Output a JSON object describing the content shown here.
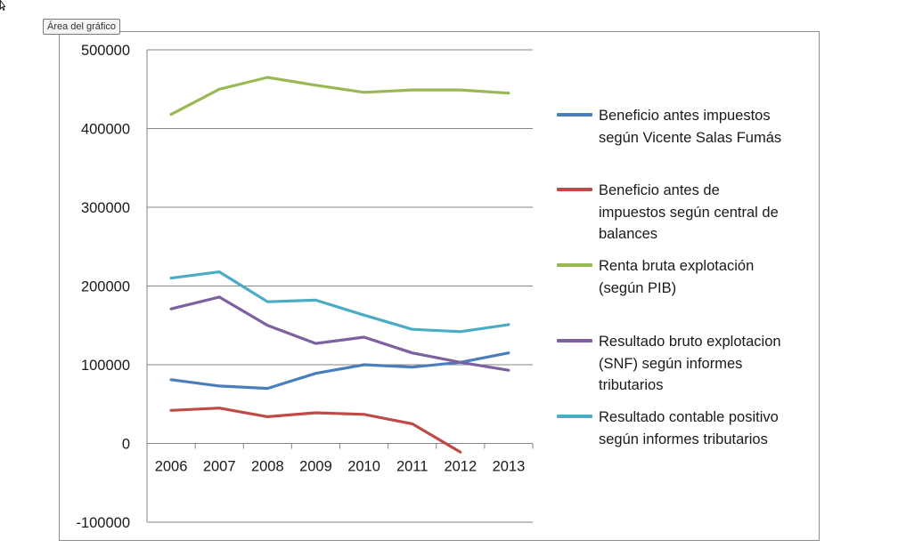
{
  "tooltip": {
    "label": "Área del gráfico"
  },
  "icons": {
    "cursor": "mouse-pointer-icon"
  },
  "chart_data": {
    "type": "line",
    "title": "",
    "xlabel": "",
    "ylabel": "",
    "categories": [
      "2006",
      "2007",
      "2008",
      "2009",
      "2010",
      "2011",
      "2012",
      "2013"
    ],
    "ylim": [
      -100000,
      500000
    ],
    "yticks": [
      500000,
      400000,
      300000,
      200000,
      100000,
      0,
      -100000
    ],
    "grid": true,
    "legend_position": "right",
    "series": [
      {
        "name": "Beneficio antes impuestos según Vicente Salas Fumás",
        "legend_lines": [
          "Beneficio antes impuestos",
          "según Vicente Salas Fumás"
        ],
        "color": "#4a7ebb",
        "values": [
          81000,
          73000,
          70000,
          89000,
          100000,
          97000,
          103000,
          115000
        ]
      },
      {
        "name": "Beneficio antes de impuestos según central de balances",
        "legend_lines": [
          "Beneficio antes de",
          "impuestos según central de",
          "balances"
        ],
        "color": "#be4b48",
        "values": [
          42000,
          45000,
          34000,
          39000,
          37000,
          25000,
          -11000,
          null
        ]
      },
      {
        "name": "Renta bruta explotación (según PIB)",
        "legend_lines": [
          "Renta bruta explotación",
          "(según PIB)"
        ],
        "color": "#98b954",
        "values": [
          418000,
          450000,
          465000,
          455000,
          446000,
          449000,
          449000,
          445000
        ]
      },
      {
        "name": "Resultado bruto explotacion (SNF) según informes tributarios",
        "legend_lines": [
          "Resultado bruto explotacion",
          "(SNF) según informes",
          "tributarios"
        ],
        "color": "#7d60a0",
        "values": [
          171000,
          186000,
          150000,
          127000,
          135000,
          115000,
          103000,
          93000
        ]
      },
      {
        "name": "Resultado contable positivo según informes tributarios",
        "legend_lines": [
          "Resultado contable positivo",
          "según informes tributarios"
        ],
        "color": "#4bacc6",
        "values": [
          210000,
          218000,
          180000,
          182000,
          163000,
          145000,
          142000,
          151000
        ]
      }
    ]
  }
}
